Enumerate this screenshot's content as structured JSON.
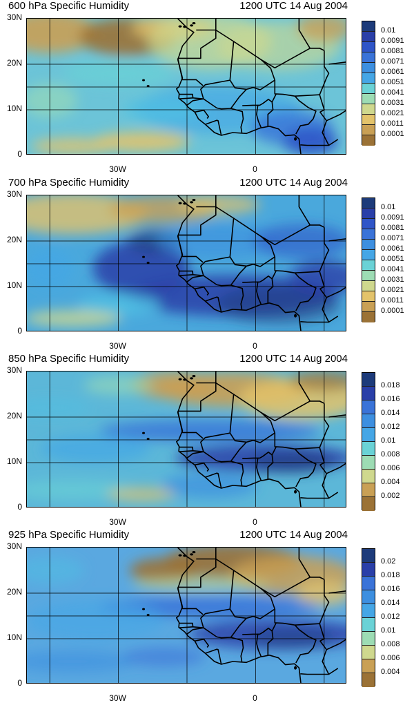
{
  "figure": {
    "x_ticks": [
      "30W",
      "0"
    ],
    "y_ticks": [
      "30N",
      "20N",
      "10N",
      "0"
    ],
    "panels": [
      {
        "title": "600 hPa Specific Humidity",
        "time": "1200 UTC 14 Aug 2004",
        "legend_labels": [
          "0.01",
          "0.0091",
          "0.0081",
          "0.0071",
          "0.0061",
          "0.0051",
          "0.0041",
          "0.0031",
          "0.0021",
          "0.0011",
          "0.0001"
        ],
        "legend_colors": [
          "#1d3b7a",
          "#2a3fa8",
          "#2f55c8",
          "#3a73d8",
          "#3d8fe0",
          "#45a6e6",
          "#4fc0e3",
          "#6ad2d6",
          "#9ddcb4",
          "#cfd88e",
          "#e3c36b",
          "#c9a055",
          "#9b7236"
        ]
      },
      {
        "title": "700 hPa Specific Humidity",
        "time": "1200 UTC 14 Aug 2004",
        "legend_labels": [
          "0.01",
          "0.0091",
          "0.0081",
          "0.0071",
          "0.0061",
          "0.0051",
          "0.0041",
          "0.0031",
          "0.0021",
          "0.0011",
          "0.0001"
        ],
        "legend_colors": [
          "#1d3b7a",
          "#2a3fa8",
          "#2f55c8",
          "#3a73d8",
          "#3d8fe0",
          "#45a6e6",
          "#4fc0e3",
          "#6ad2d6",
          "#9ddcb4",
          "#cfd88e",
          "#e3c36b",
          "#c9a055",
          "#9b7236"
        ]
      },
      {
        "title": "850 hPa Specific Humidity",
        "time": "1200 UTC 14 Aug 2004",
        "legend_labels": [
          "0.018",
          "0.016",
          "0.014",
          "0.012",
          "0.01",
          "0.008",
          "0.006",
          "0.004",
          "0.002"
        ],
        "legend_colors": [
          "#1d3b7a",
          "#2a3fa8",
          "#2f55c8",
          "#3a73d8",
          "#3d8fe0",
          "#45a6e6",
          "#4fc0e3",
          "#6ad2d6",
          "#9ddcb4",
          "#cfd88e",
          "#e3c36b",
          "#c9a055",
          "#9b7236"
        ]
      },
      {
        "title": "925 hPa Specific Humidity",
        "time": "1200 UTC 14 Aug 2004",
        "legend_labels": [
          "0.02",
          "0.018",
          "0.016",
          "0.014",
          "0.012",
          "0.01",
          "0.008",
          "0.006",
          "0.004"
        ],
        "legend_colors": [
          "#1d3b7a",
          "#2a3fa8",
          "#2f55c8",
          "#3a73d8",
          "#3d8fe0",
          "#45a6e6",
          "#4fc0e3",
          "#6ad2d6",
          "#9ddcb4",
          "#cfd88e",
          "#e3c36b",
          "#c9a055",
          "#9b7236"
        ]
      }
    ]
  }
}
